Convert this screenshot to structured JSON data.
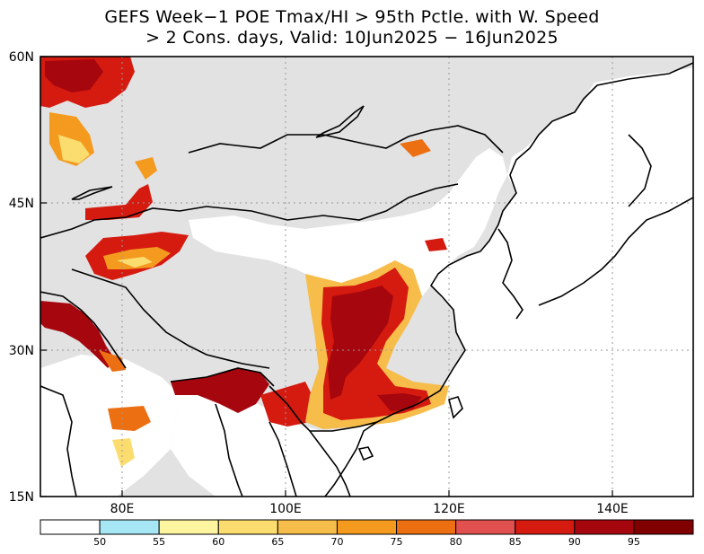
{
  "title_line1": "GEFS Week−1 POE Tmax/HI > 95th Pctle. with W. Speed",
  "title_line2": "> 2 Cons. days, Valid: 10Jun2025 − 16Jun2025",
  "lat_labels": [
    "60N",
    "45N",
    "30N",
    "15N"
  ],
  "lon_labels": [
    "80E",
    "100E",
    "120E",
    "140E"
  ],
  "colorbar": {
    "labels": [
      "50",
      "55",
      "60",
      "65",
      "70",
      "75",
      "80",
      "85",
      "90",
      "95"
    ],
    "colors": [
      "#ffffff",
      "#a6e6f5",
      "#fdf5a0",
      "#fbdc6e",
      "#f7bd4a",
      "#f39a1f",
      "#ec6f12",
      "#e0504f",
      "#d51a10",
      "#a6060e",
      "#800000"
    ]
  },
  "colors": {
    "land": "#e2e2e2",
    "ocean": "#ffffff",
    "coast": "#000000",
    "grid": "#9a9a9a"
  }
}
